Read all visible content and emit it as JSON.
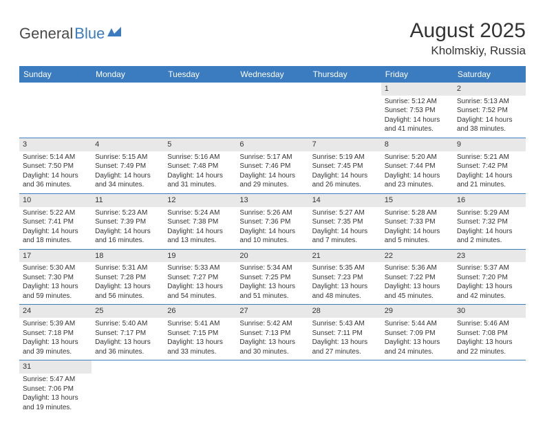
{
  "logo": {
    "part1": "General",
    "part2": "Blue"
  },
  "title": "August 2025",
  "location": "Kholmskiy, Russia",
  "weekdays": [
    "Sunday",
    "Monday",
    "Tuesday",
    "Wednesday",
    "Thursday",
    "Friday",
    "Saturday"
  ],
  "colors": {
    "header_bg": "#3b7bbf",
    "header_fg": "#ffffff",
    "daynum_bg": "#e8e8e8",
    "border": "#3b7bbf",
    "logo_blue": "#3b7bbf",
    "logo_gray": "#4a4a4a"
  },
  "font": {
    "title_size": 30,
    "location_size": 17,
    "weekday_size": 12,
    "daynum_size": 11,
    "body_size": 10
  },
  "weeks": [
    [
      null,
      null,
      null,
      null,
      null,
      {
        "n": "1",
        "sr": "Sunrise: 5:12 AM",
        "ss": "Sunset: 7:53 PM",
        "dl": "Daylight: 14 hours and 41 minutes."
      },
      {
        "n": "2",
        "sr": "Sunrise: 5:13 AM",
        "ss": "Sunset: 7:52 PM",
        "dl": "Daylight: 14 hours and 38 minutes."
      }
    ],
    [
      {
        "n": "3",
        "sr": "Sunrise: 5:14 AM",
        "ss": "Sunset: 7:50 PM",
        "dl": "Daylight: 14 hours and 36 minutes."
      },
      {
        "n": "4",
        "sr": "Sunrise: 5:15 AM",
        "ss": "Sunset: 7:49 PM",
        "dl": "Daylight: 14 hours and 34 minutes."
      },
      {
        "n": "5",
        "sr": "Sunrise: 5:16 AM",
        "ss": "Sunset: 7:48 PM",
        "dl": "Daylight: 14 hours and 31 minutes."
      },
      {
        "n": "6",
        "sr": "Sunrise: 5:17 AM",
        "ss": "Sunset: 7:46 PM",
        "dl": "Daylight: 14 hours and 29 minutes."
      },
      {
        "n": "7",
        "sr": "Sunrise: 5:19 AM",
        "ss": "Sunset: 7:45 PM",
        "dl": "Daylight: 14 hours and 26 minutes."
      },
      {
        "n": "8",
        "sr": "Sunrise: 5:20 AM",
        "ss": "Sunset: 7:44 PM",
        "dl": "Daylight: 14 hours and 23 minutes."
      },
      {
        "n": "9",
        "sr": "Sunrise: 5:21 AM",
        "ss": "Sunset: 7:42 PM",
        "dl": "Daylight: 14 hours and 21 minutes."
      }
    ],
    [
      {
        "n": "10",
        "sr": "Sunrise: 5:22 AM",
        "ss": "Sunset: 7:41 PM",
        "dl": "Daylight: 14 hours and 18 minutes."
      },
      {
        "n": "11",
        "sr": "Sunrise: 5:23 AM",
        "ss": "Sunset: 7:39 PM",
        "dl": "Daylight: 14 hours and 16 minutes."
      },
      {
        "n": "12",
        "sr": "Sunrise: 5:24 AM",
        "ss": "Sunset: 7:38 PM",
        "dl": "Daylight: 14 hours and 13 minutes."
      },
      {
        "n": "13",
        "sr": "Sunrise: 5:26 AM",
        "ss": "Sunset: 7:36 PM",
        "dl": "Daylight: 14 hours and 10 minutes."
      },
      {
        "n": "14",
        "sr": "Sunrise: 5:27 AM",
        "ss": "Sunset: 7:35 PM",
        "dl": "Daylight: 14 hours and 7 minutes."
      },
      {
        "n": "15",
        "sr": "Sunrise: 5:28 AM",
        "ss": "Sunset: 7:33 PM",
        "dl": "Daylight: 14 hours and 5 minutes."
      },
      {
        "n": "16",
        "sr": "Sunrise: 5:29 AM",
        "ss": "Sunset: 7:32 PM",
        "dl": "Daylight: 14 hours and 2 minutes."
      }
    ],
    [
      {
        "n": "17",
        "sr": "Sunrise: 5:30 AM",
        "ss": "Sunset: 7:30 PM",
        "dl": "Daylight: 13 hours and 59 minutes."
      },
      {
        "n": "18",
        "sr": "Sunrise: 5:31 AM",
        "ss": "Sunset: 7:28 PM",
        "dl": "Daylight: 13 hours and 56 minutes."
      },
      {
        "n": "19",
        "sr": "Sunrise: 5:33 AM",
        "ss": "Sunset: 7:27 PM",
        "dl": "Daylight: 13 hours and 54 minutes."
      },
      {
        "n": "20",
        "sr": "Sunrise: 5:34 AM",
        "ss": "Sunset: 7:25 PM",
        "dl": "Daylight: 13 hours and 51 minutes."
      },
      {
        "n": "21",
        "sr": "Sunrise: 5:35 AM",
        "ss": "Sunset: 7:23 PM",
        "dl": "Daylight: 13 hours and 48 minutes."
      },
      {
        "n": "22",
        "sr": "Sunrise: 5:36 AM",
        "ss": "Sunset: 7:22 PM",
        "dl": "Daylight: 13 hours and 45 minutes."
      },
      {
        "n": "23",
        "sr": "Sunrise: 5:37 AM",
        "ss": "Sunset: 7:20 PM",
        "dl": "Daylight: 13 hours and 42 minutes."
      }
    ],
    [
      {
        "n": "24",
        "sr": "Sunrise: 5:39 AM",
        "ss": "Sunset: 7:18 PM",
        "dl": "Daylight: 13 hours and 39 minutes."
      },
      {
        "n": "25",
        "sr": "Sunrise: 5:40 AM",
        "ss": "Sunset: 7:17 PM",
        "dl": "Daylight: 13 hours and 36 minutes."
      },
      {
        "n": "26",
        "sr": "Sunrise: 5:41 AM",
        "ss": "Sunset: 7:15 PM",
        "dl": "Daylight: 13 hours and 33 minutes."
      },
      {
        "n": "27",
        "sr": "Sunrise: 5:42 AM",
        "ss": "Sunset: 7:13 PM",
        "dl": "Daylight: 13 hours and 30 minutes."
      },
      {
        "n": "28",
        "sr": "Sunrise: 5:43 AM",
        "ss": "Sunset: 7:11 PM",
        "dl": "Daylight: 13 hours and 27 minutes."
      },
      {
        "n": "29",
        "sr": "Sunrise: 5:44 AM",
        "ss": "Sunset: 7:09 PM",
        "dl": "Daylight: 13 hours and 24 minutes."
      },
      {
        "n": "30",
        "sr": "Sunrise: 5:46 AM",
        "ss": "Sunset: 7:08 PM",
        "dl": "Daylight: 13 hours and 22 minutes."
      }
    ],
    [
      {
        "n": "31",
        "sr": "Sunrise: 5:47 AM",
        "ss": "Sunset: 7:06 PM",
        "dl": "Daylight: 13 hours and 19 minutes."
      },
      null,
      null,
      null,
      null,
      null,
      null
    ]
  ]
}
